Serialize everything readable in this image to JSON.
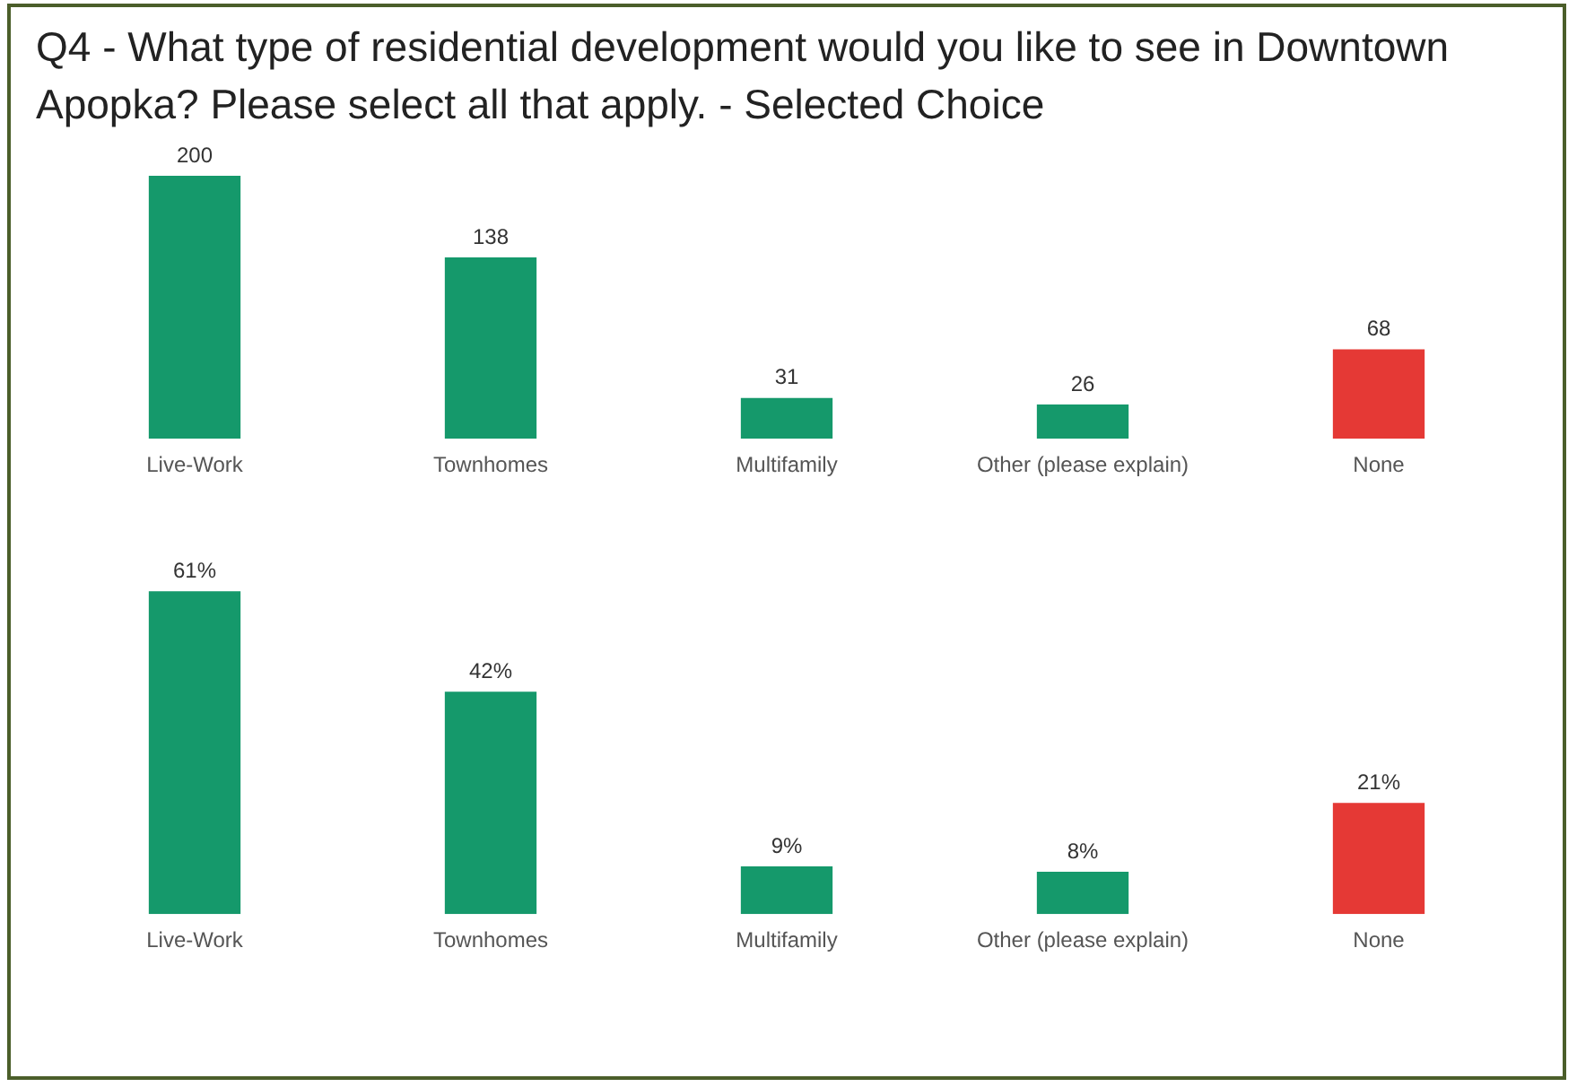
{
  "chart_data": [
    {
      "type": "bar",
      "title": "Q4 - What type of residential development would you like to see in Downtown Apopka? Please select all that apply. - Selected Choice",
      "categories": [
        "Live-Work",
        "Townhomes",
        "Multifamily",
        "Other (please explain)",
        "None"
      ],
      "values": [
        200,
        138,
        31,
        26,
        68
      ],
      "colors": [
        "#15996b",
        "#15996b",
        "#15996b",
        "#15996b",
        "#e53935"
      ],
      "data_labels": true,
      "tick_labels": "x",
      "grid": false,
      "legend": false
    },
    {
      "type": "bar",
      "categories": [
        "Live-Work",
        "Townhomes",
        "Multifamily",
        "Other (please explain)",
        "None"
      ],
      "values": [
        61,
        42,
        9,
        8,
        21
      ],
      "colors": [
        "#15996b",
        "#15996b",
        "#15996b",
        "#15996b",
        "#e53935"
      ],
      "value_labels": [
        "61%",
        "42%",
        "9%",
        "8%",
        "21%"
      ],
      "tick_labels": "x",
      "grid": false,
      "legend": false
    }
  ]
}
